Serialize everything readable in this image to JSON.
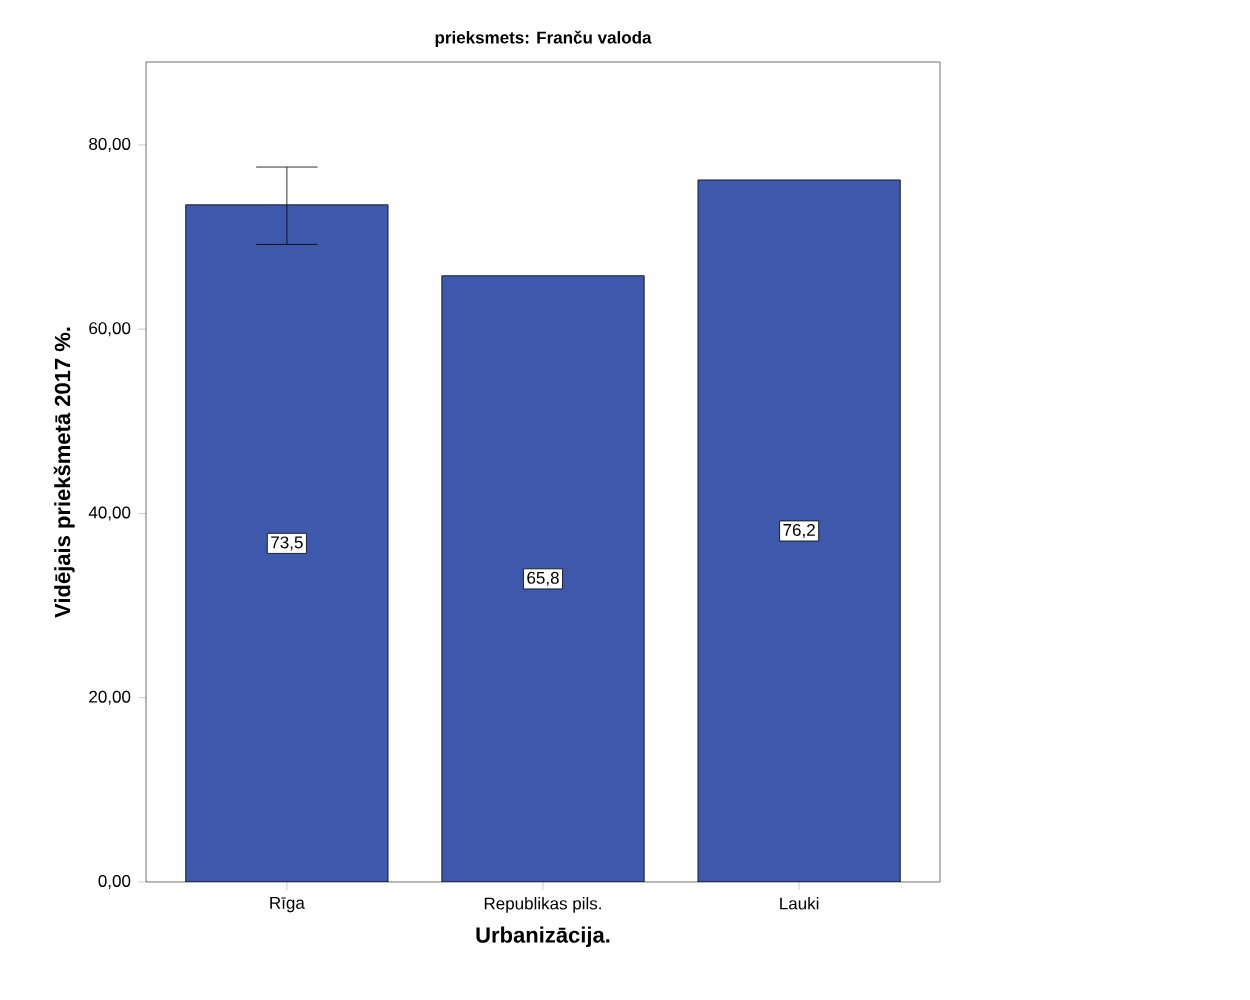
{
  "chart_data": {
    "type": "bar",
    "title": "prieksmets: Franču valoda",
    "xlabel": "Urbanizācija.",
    "ylabel": "Vidējais priekšmetā 2017 %.",
    "categories": [
      "Rīga",
      "Republikas pils.",
      "Lauki"
    ],
    "values": [
      73.5,
      65.8,
      76.2
    ],
    "color": "#3e58ac",
    "value_labels": [
      "73,5",
      "65,8",
      "76,2"
    ],
    "errors": [
      [
        69.2,
        77.6
      ],
      null,
      null
    ],
    "ylim": [
      0,
      89
    ],
    "yticks": [
      {
        "value": 0,
        "label": "0,00"
      },
      {
        "value": 20,
        "label": "20,00"
      },
      {
        "value": 40,
        "label": "40,00"
      },
      {
        "value": 60,
        "label": "60,00"
      },
      {
        "value": 80,
        "label": "80,00"
      }
    ],
    "grid": false
  }
}
